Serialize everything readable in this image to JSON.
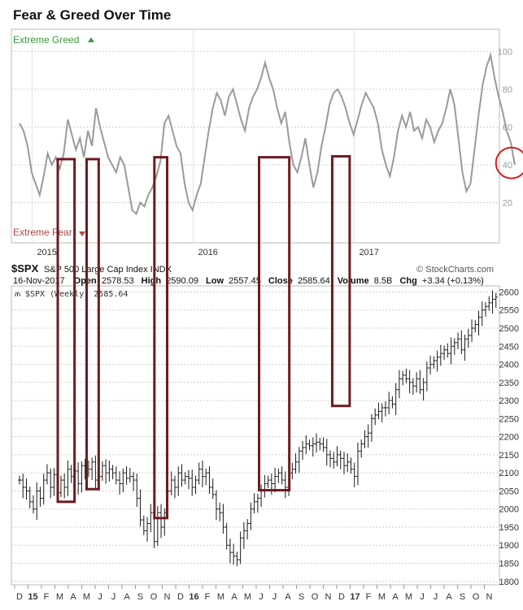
{
  "title": "Fear & Greed Over Time",
  "panel_top": {
    "greed_label": "Extreme Greed",
    "fear_label": "Extreme Fear",
    "ylim": [
      0,
      110
    ],
    "yticks": [
      20,
      40,
      60,
      80,
      100
    ],
    "year_labels": [
      {
        "label": "2015",
        "t": 1.3
      },
      {
        "label": "2016",
        "t": 13.3
      },
      {
        "label": "2017",
        "t": 25.3
      }
    ]
  },
  "header": {
    "symbol": "$SPX",
    "description": "S&P 500 Large Cap Index INDX",
    "brand": "© StockCharts.com",
    "date": "16-Nov-2017",
    "fields": [
      {
        "label": "Open",
        "value": "2578.53"
      },
      {
        "label": "High",
        "value": "2590.09"
      },
      {
        "label": "Low",
        "value": "2557.45"
      },
      {
        "label": "Close",
        "value": "2585.64"
      },
      {
        "label": "Volume",
        "value": "8.5B"
      },
      {
        "label": "Chg",
        "value": "+3.34 (+0.13%)"
      }
    ],
    "legend": "$SPX (Weekly) 2585.64"
  },
  "panel_bottom": {
    "ylim": [
      1795,
      2610
    ],
    "yticks": [
      1800,
      1850,
      1900,
      1950,
      2000,
      2050,
      2100,
      2150,
      2200,
      2250,
      2300,
      2350,
      2400,
      2450,
      2500,
      2550,
      2600
    ]
  },
  "xaxis": {
    "labels": [
      "D",
      "15",
      "F",
      "M",
      "A",
      "M",
      "J",
      "J",
      "A",
      "S",
      "O",
      "N",
      "D",
      "16",
      "F",
      "M",
      "A",
      "M",
      "J",
      "J",
      "A",
      "S",
      "O",
      "N",
      "D",
      "17",
      "F",
      "M",
      "A",
      "M",
      "J",
      "J",
      "A",
      "S",
      "O",
      "N"
    ],
    "bold": [
      "15",
      "16",
      "17"
    ]
  },
  "chart_data": [
    {
      "type": "line",
      "title": "Fear & Greed Over Time",
      "ylim": [
        0,
        110
      ],
      "grid": true,
      "series": [
        {
          "points": [
            [
              0,
              62
            ],
            [
              0.3,
              58
            ],
            [
              0.6,
              50
            ],
            [
              0.9,
              36
            ],
            [
              1.2,
              30
            ],
            [
              1.5,
              24
            ],
            [
              1.8,
              34
            ],
            [
              2.1,
              46
            ],
            [
              2.4,
              40
            ],
            [
              2.7,
              44
            ],
            [
              3,
              38
            ],
            [
              3.3,
              46
            ],
            [
              3.6,
              64
            ],
            [
              3.9,
              56
            ],
            [
              4.2,
              48
            ],
            [
              4.5,
              54
            ],
            [
              4.8,
              44
            ],
            [
              5.1,
              58
            ],
            [
              5.4,
              50
            ],
            [
              5.7,
              70
            ],
            [
              6,
              60
            ],
            [
              6.3,
              52
            ],
            [
              6.6,
              44
            ],
            [
              6.9,
              40
            ],
            [
              7.2,
              36
            ],
            [
              7.5,
              44
            ],
            [
              7.8,
              40
            ],
            [
              8.1,
              28
            ],
            [
              8.4,
              16
            ],
            [
              8.7,
              14
            ],
            [
              9,
              20
            ],
            [
              9.3,
              18
            ],
            [
              9.6,
              24
            ],
            [
              9.9,
              28
            ],
            [
              10.2,
              34
            ],
            [
              10.5,
              42
            ],
            [
              10.8,
              62
            ],
            [
              11.1,
              66
            ],
            [
              11.4,
              58
            ],
            [
              11.7,
              50
            ],
            [
              12,
              46
            ],
            [
              12.3,
              30
            ],
            [
              12.6,
              20
            ],
            [
              12.9,
              16
            ],
            [
              13.2,
              24
            ],
            [
              13.5,
              30
            ],
            [
              13.8,
              44
            ],
            [
              14.1,
              58
            ],
            [
              14.4,
              70
            ],
            [
              14.7,
              78
            ],
            [
              15,
              74
            ],
            [
              15.3,
              66
            ],
            [
              15.6,
              76
            ],
            [
              15.9,
              80
            ],
            [
              16.2,
              72
            ],
            [
              16.5,
              64
            ],
            [
              16.8,
              58
            ],
            [
              17.1,
              70
            ],
            [
              17.4,
              76
            ],
            [
              17.7,
              80
            ],
            [
              18,
              86
            ],
            [
              18.3,
              94
            ],
            [
              18.6,
              86
            ],
            [
              18.9,
              80
            ],
            [
              19.2,
              70
            ],
            [
              19.5,
              62
            ],
            [
              19.8,
              68
            ],
            [
              20.1,
              52
            ],
            [
              20.4,
              40
            ],
            [
              20.7,
              36
            ],
            [
              21,
              44
            ],
            [
              21.3,
              54
            ],
            [
              21.6,
              40
            ],
            [
              21.9,
              28
            ],
            [
              22.2,
              36
            ],
            [
              22.5,
              50
            ],
            [
              22.8,
              60
            ],
            [
              23.1,
              72
            ],
            [
              23.4,
              78
            ],
            [
              23.7,
              80
            ],
            [
              24,
              76
            ],
            [
              24.3,
              70
            ],
            [
              24.6,
              62
            ],
            [
              24.9,
              56
            ],
            [
              25.2,
              64
            ],
            [
              25.5,
              72
            ],
            [
              25.8,
              78
            ],
            [
              26.1,
              74
            ],
            [
              26.4,
              70
            ],
            [
              26.7,
              62
            ],
            [
              27,
              48
            ],
            [
              27.3,
              40
            ],
            [
              27.6,
              34
            ],
            [
              27.9,
              44
            ],
            [
              28.2,
              58
            ],
            [
              28.5,
              66
            ],
            [
              28.8,
              60
            ],
            [
              29.1,
              68
            ],
            [
              29.4,
              58
            ],
            [
              29.7,
              60
            ],
            [
              30,
              54
            ],
            [
              30.3,
              64
            ],
            [
              30.6,
              60
            ],
            [
              30.9,
              52
            ],
            [
              31.2,
              58
            ],
            [
              31.5,
              62
            ],
            [
              31.8,
              70
            ],
            [
              32.1,
              80
            ],
            [
              32.4,
              72
            ],
            [
              32.7,
              54
            ],
            [
              33,
              36
            ],
            [
              33.3,
              26
            ],
            [
              33.6,
              30
            ],
            [
              33.9,
              48
            ],
            [
              34.2,
              66
            ],
            [
              34.5,
              82
            ],
            [
              34.8,
              92
            ],
            [
              35.1,
              98
            ],
            [
              35.4,
              86
            ],
            [
              35.7,
              76
            ],
            [
              36,
              68
            ],
            [
              36.3,
              58
            ],
            [
              36.6,
              52
            ],
            [
              36.9,
              40
            ]
          ]
        }
      ]
    },
    {
      "type": "candlestick",
      "title": "$SPX (Weekly) 2585.64",
      "ylim": [
        1795,
        2610
      ],
      "grid": true,
      "series": [
        {
          "name": "$SPX (Weekly)",
          "closes": [
            2080,
            2060,
            2050,
            2020,
            2000,
            2050,
            2030,
            2080,
            2100,
            2060,
            2095,
            2045,
            2080,
            2060,
            2110,
            2090,
            2105,
            2070,
            2120,
            2100,
            2110,
            2130,
            2080,
            2090,
            2120,
            2100,
            2110,
            2100,
            2080,
            2070,
            2100,
            2085,
            2090,
            2080,
            2030,
            1970,
            1940,
            1960,
            1990,
            1910,
            1990,
            1950,
            1990,
            2050,
            2080,
            2060,
            2100,
            2080,
            2090,
            2085,
            2060,
            2080,
            2110,
            2090,
            2100,
            2060,
            2040,
            2000,
            1990,
            1950,
            1900,
            1880,
            1870,
            1860,
            1920,
            1940,
            1960,
            2000,
            2020,
            2030,
            2050,
            2070,
            2080,
            2070,
            2090,
            2100,
            2080,
            2060,
            2100,
            2110,
            2130,
            2160,
            2170,
            2180,
            2175,
            2180,
            2185,
            2180,
            2170,
            2150,
            2140,
            2130,
            2150,
            2140,
            2120,
            2130,
            2110,
            2090,
            2160,
            2180,
            2200,
            2210,
            2250,
            2260,
            2270,
            2280,
            2280,
            2300,
            2290,
            2330,
            2360,
            2370,
            2360,
            2350,
            2340,
            2360,
            2330,
            2350,
            2390,
            2400,
            2410,
            2420,
            2430,
            2440,
            2430,
            2450,
            2460,
            2470,
            2440,
            2470,
            2480,
            2500,
            2510,
            2530,
            2550,
            2560,
            2570,
            2580,
            2585.64
          ]
        }
      ]
    }
  ],
  "highlights": {
    "rects": [
      {
        "t0": 2.85,
        "t1": 4.1,
        "top_fg": 43,
        "bottom_price": 2020
      },
      {
        "t0": 5.0,
        "t1": 5.9,
        "top_fg": 43,
        "bottom_price": 2055
      },
      {
        "t0": 10.05,
        "t1": 11.0,
        "top_fg": 44,
        "bottom_price": 1975
      },
      {
        "t0": 17.85,
        "t1": 20.1,
        "top_fg": 44,
        "bottom_price": 2052
      },
      {
        "t0": 23.3,
        "t1": 24.6,
        "top_fg": 44.5,
        "bottom_price": 2285
      }
    ],
    "circle": {
      "t": 36.65,
      "fg": 41
    }
  },
  "colors": {
    "fear_greed_line": "#9a9a9a",
    "price_bars": "#1a1a1a",
    "highlight": "#6e1a22",
    "circle": "#d62020",
    "grid": "#cfcfcf"
  }
}
